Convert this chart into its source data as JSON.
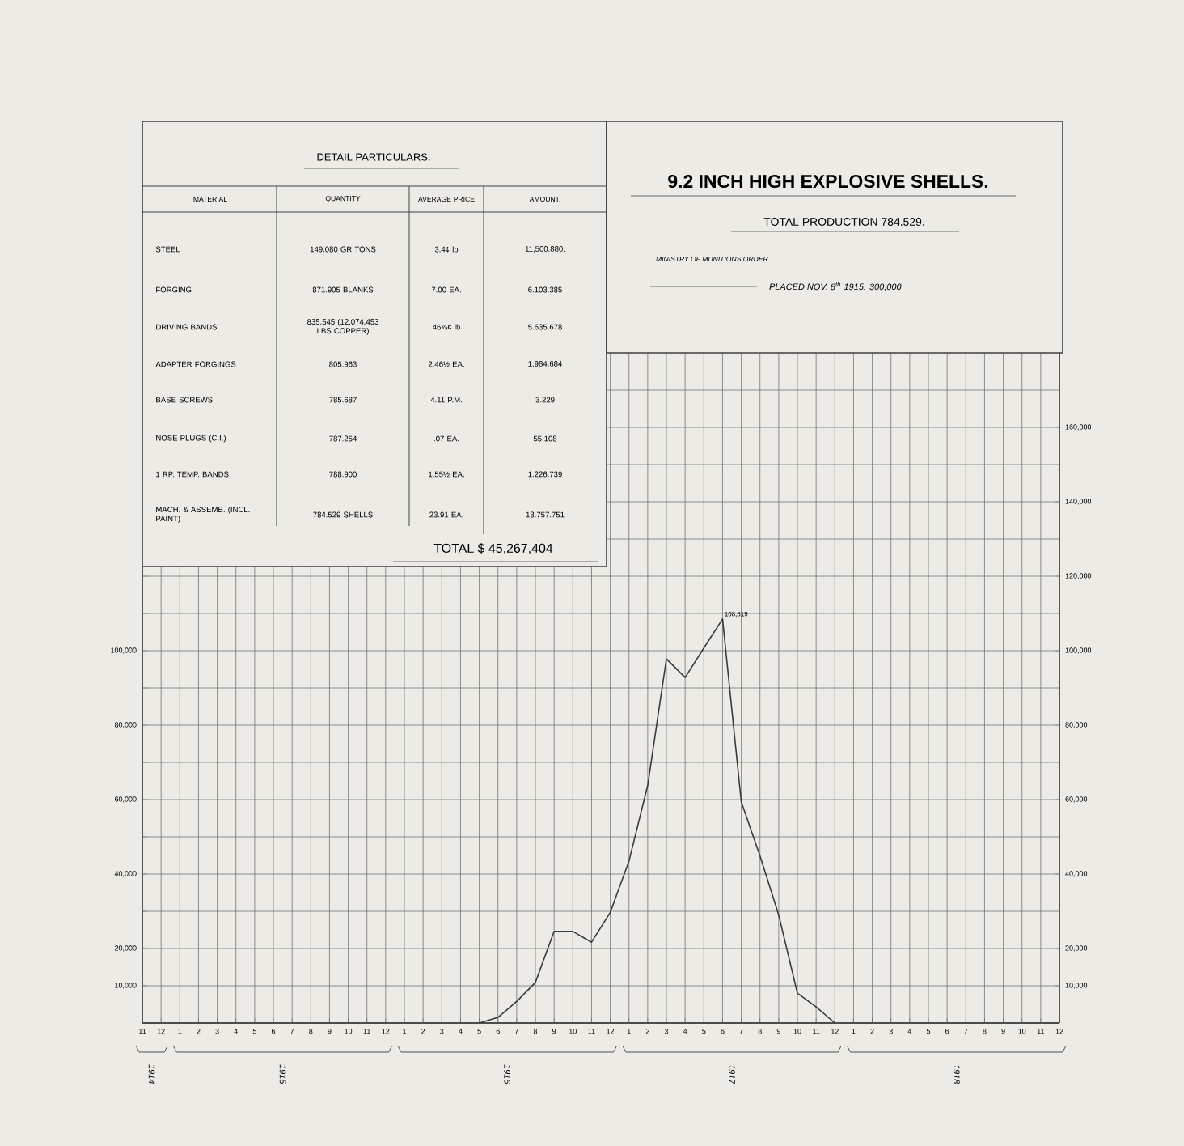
{
  "chart_data": {
    "type": "line",
    "title": "9.2 INCH HIGH EXPLOSIVE SHELLS.",
    "subtitle": "TOTAL PRODUCTION 784.529.",
    "categories": [
      "11",
      "12",
      "1",
      "2",
      "3",
      "4",
      "5",
      "6",
      "7",
      "8",
      "9",
      "10",
      "11",
      "12",
      "1",
      "2",
      "3",
      "4",
      "5",
      "6",
      "7",
      "8",
      "9",
      "10",
      "11",
      "12",
      "1",
      "2",
      "3",
      "4",
      "5",
      "6",
      "7",
      "8",
      "9",
      "10",
      "11",
      "12",
      "1",
      "2",
      "3",
      "4",
      "5",
      "6",
      "7",
      "8",
      "9",
      "10",
      "11",
      "12"
    ],
    "values": [
      null,
      null,
      null,
      null,
      null,
      null,
      null,
      null,
      null,
      null,
      null,
      null,
      null,
      null,
      null,
      null,
      null,
      null,
      0,
      1500,
      5800,
      10900,
      24600,
      24600,
      21700,
      29700,
      43500,
      63800,
      97800,
      92800,
      100700,
      108519,
      59400,
      44900,
      29000,
      8000,
      4300,
      0,
      null,
      null,
      null,
      null,
      null,
      null,
      null,
      null,
      null,
      null,
      null,
      null
    ],
    "value_labels": [
      null,
      null,
      null,
      null,
      null,
      null,
      null,
      null,
      null,
      null,
      null,
      null,
      null,
      null,
      null,
      null,
      null,
      null,
      null,
      null,
      null,
      null,
      null,
      null,
      null,
      null,
      null,
      null,
      null,
      null,
      null,
      "108,519",
      null,
      null,
      null,
      null,
      null,
      null,
      null,
      null,
      null,
      null,
      null,
      null,
      null,
      null,
      null,
      null,
      null,
      null
    ],
    "color": "#3a3a3a",
    "ylim": [
      0,
      180000
    ],
    "yticks": [
      {
        "value": 10000,
        "label": "10,000"
      },
      {
        "value": 20000,
        "label": "20,000"
      },
      {
        "value": 30000,
        "label": null
      },
      {
        "value": 40000,
        "label": "40,000"
      },
      {
        "value": 50000,
        "label": null
      },
      {
        "value": 60000,
        "label": "60,000"
      },
      {
        "value": 70000,
        "label": null
      },
      {
        "value": 80000,
        "label": "80,000"
      },
      {
        "value": 90000,
        "label": null
      },
      {
        "value": 100000,
        "label": "100,000"
      },
      {
        "value": 110000,
        "label": null
      },
      {
        "value": 120000,
        "label": null
      },
      {
        "value": 130000,
        "label": null
      },
      {
        "value": 140000,
        "label": null
      },
      {
        "value": 150000,
        "label": null
      },
      {
        "value": 160000,
        "label": null
      },
      {
        "value": 170000,
        "label": null
      }
    ],
    "y2lim": [
      0,
      180000
    ],
    "y2ticks": [
      {
        "value": 10000,
        "label": "10,000"
      },
      {
        "value": 20000,
        "label": "20,000"
      },
      {
        "value": 40000,
        "label": "40,000"
      },
      {
        "value": 60000,
        "label": "60,000"
      },
      {
        "value": 80000,
        "label": "80,000"
      },
      {
        "value": 100000,
        "label": "100,000"
      },
      {
        "value": 120000,
        "label": "120,000"
      },
      {
        "value": 140000,
        "label": "140,000"
      },
      {
        "value": 160000,
        "label": "160,000"
      }
    ],
    "grid": true,
    "annotations": [
      "DETAIL PARTICULARS.",
      "MATERIAL",
      "QUANTITY",
      "AVERAGE PRICE",
      "AMOUNT.",
      "STEEL",
      "149.080 GR TONS",
      "3.4¢ lb",
      "11,500.880.",
      "FORGING",
      "871.905 BLANKS",
      "7.00 EA.",
      "6.103.385",
      "DRIVING BANDS",
      "835.545 (12.074.453 LBS COPPER)",
      "46⅞¢ lb",
      "5.635.678",
      "ADAPTER FORGINGS",
      "805.963",
      "2.46½ EA.",
      "1,984.684",
      "BASE SCREWS",
      "785.687",
      "4.11 P.M.",
      "3.229",
      "NOSE PLUGS (C.I.)",
      "787.254",
      ".07 EA.",
      "55.108",
      "1 RP. TEMP. BANDS",
      "788.900",
      "1.55½ EA.",
      "1.226.739",
      "MACH. & ASSEMB. (INCL. PAINT)",
      "784.529 SHELLS",
      "23.91 EA.",
      "18.757.751",
      "TOTAL $ 45,267,404",
      "MINISTRY OF MUNITIONS ORDER",
      "PLACED NOV. 8$^{th}$ 1915. 300,000",
      "1914",
      "1915",
      "1916",
      "1917",
      "1918"
    ]
  }
}
